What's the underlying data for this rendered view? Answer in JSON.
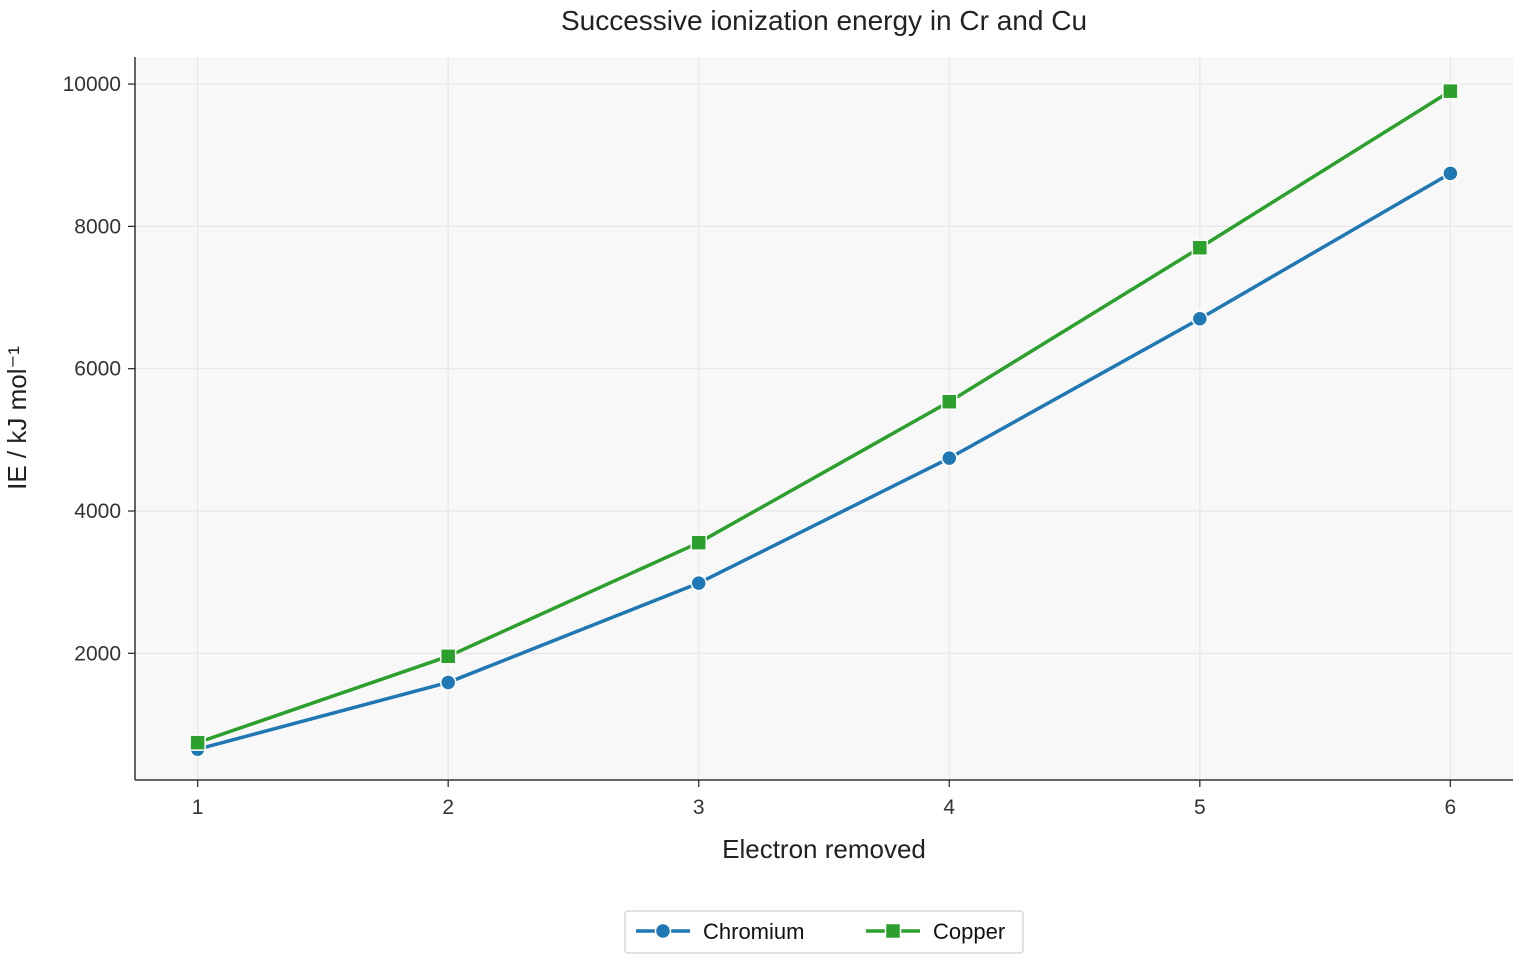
{
  "chart_data": {
    "type": "line",
    "title": "Successive ionization energy in Cr and Cu",
    "xlabel": "Electron removed",
    "ylabel": "IE / kJ mol⁻¹",
    "x": [
      1,
      2,
      3,
      4,
      5,
      6
    ],
    "xlim": [
      0.75,
      6.25
    ],
    "ylim": [
      220,
      10380
    ],
    "yticks": [
      2000,
      4000,
      6000,
      8000,
      10000
    ],
    "grid": true,
    "legend_position": "bottom-center",
    "series": [
      {
        "name": "Chromium",
        "marker": "circle",
        "color": "#1f77b4",
        "values": [
          653,
          1591,
          2987,
          4743,
          6702,
          8745
        ]
      },
      {
        "name": "Copper",
        "marker": "square",
        "color": "#2ca02c",
        "values": [
          745,
          1958,
          3555,
          5536,
          7700,
          9900
        ]
      }
    ]
  }
}
